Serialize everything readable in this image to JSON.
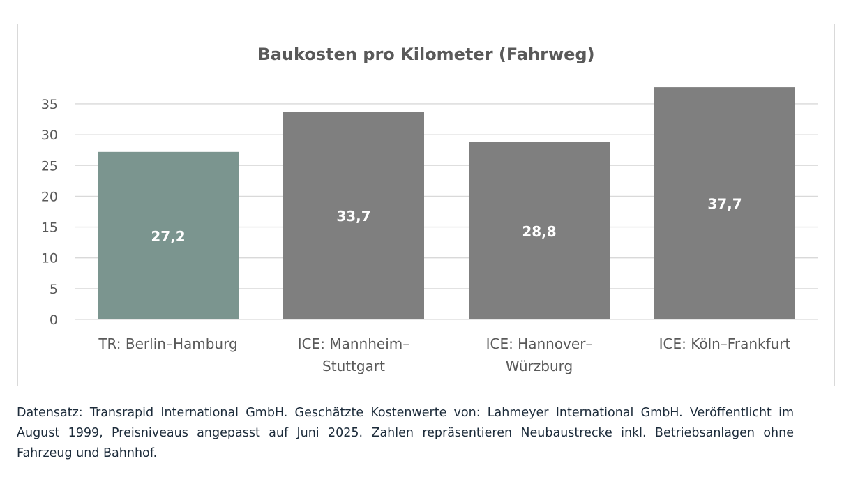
{
  "chart_data": {
    "type": "bar",
    "title": "Baukosten pro Kilometer (Fahrweg)",
    "xlabel": "",
    "ylabel": "",
    "categories": [
      "TR: Berlin–Hamburg",
      "ICE: Mannheim–Stuttgart",
      "ICE: Hannover–Würzburg",
      "ICE: Köln–Frankfurt"
    ],
    "category_lines": [
      [
        "TR: Berlin–Hamburg"
      ],
      [
        "ICE: Mannheim–",
        "Stuttgart"
      ],
      [
        "ICE: Hannover–",
        "Würzburg"
      ],
      [
        "ICE: Köln–Frankfurt"
      ]
    ],
    "values": [
      27.2,
      33.7,
      28.8,
      37.7
    ],
    "data_labels": [
      "27,2",
      "33,7",
      "28,8",
      "37,7"
    ],
    "bar_colors": [
      "#7b958f",
      "#7f7f7f",
      "#7f7f7f",
      "#7f7f7f"
    ],
    "ylim": [
      0,
      37.7
    ],
    "yticks": [
      0,
      5,
      10,
      15,
      20,
      25,
      30,
      35
    ],
    "grid": true,
    "legend": "none"
  },
  "caption": "Datensatz:  Transrapid International GmbH. Geschätzte Kostenwerte von: Lahmeyer International GmbH. Veröffentlicht im August 1999, Preisniveaus angepasst auf Juni 2025. Zahlen repräsentieren Neubaustrecke inkl. Betriebsanlagen ohne Fahrzeug und Bahnhof."
}
